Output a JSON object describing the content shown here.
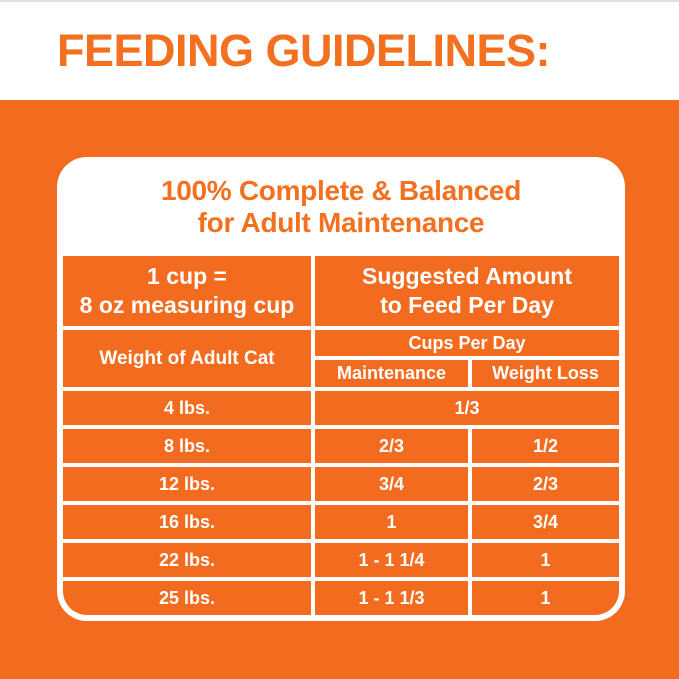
{
  "colors": {
    "orange": "#F26B1E",
    "orange_text": "#F2701F",
    "white": "#FFFFFF",
    "top_edge_border": "#E0E0E0"
  },
  "header": {
    "title": "FEEDING GUIDELINES:"
  },
  "card": {
    "heading": {
      "line1": "100% Complete & Balanced",
      "line2": "for Adult Maintenance"
    },
    "table": {
      "cup_note": {
        "line1": "1 cup =",
        "line2": "8 oz measuring cup"
      },
      "suggested": {
        "line1": "Suggested Amount",
        "line2": "to Feed Per Day"
      },
      "weight_header": "Weight of Adult Cat",
      "cups_per_day_header": "Cups Per Day",
      "maintenance_header": "Maintenance",
      "weight_loss_header": "Weight Loss",
      "rows": [
        {
          "weight": "4 lbs.",
          "amount": "1/3",
          "spans_both_columns": true
        },
        {
          "weight": "8 lbs.",
          "maintenance": "2/3",
          "weight_loss": "1/2"
        },
        {
          "weight": "12 lbs.",
          "maintenance": "3/4",
          "weight_loss": "2/3"
        },
        {
          "weight": "16 lbs.",
          "maintenance": "1",
          "weight_loss": "3/4"
        },
        {
          "weight": "22 lbs.",
          "maintenance": "1 - 1 1/4",
          "weight_loss": "1"
        },
        {
          "weight": "25 lbs.",
          "maintenance": "1 - 1 1/3",
          "weight_loss": "1"
        }
      ]
    }
  }
}
